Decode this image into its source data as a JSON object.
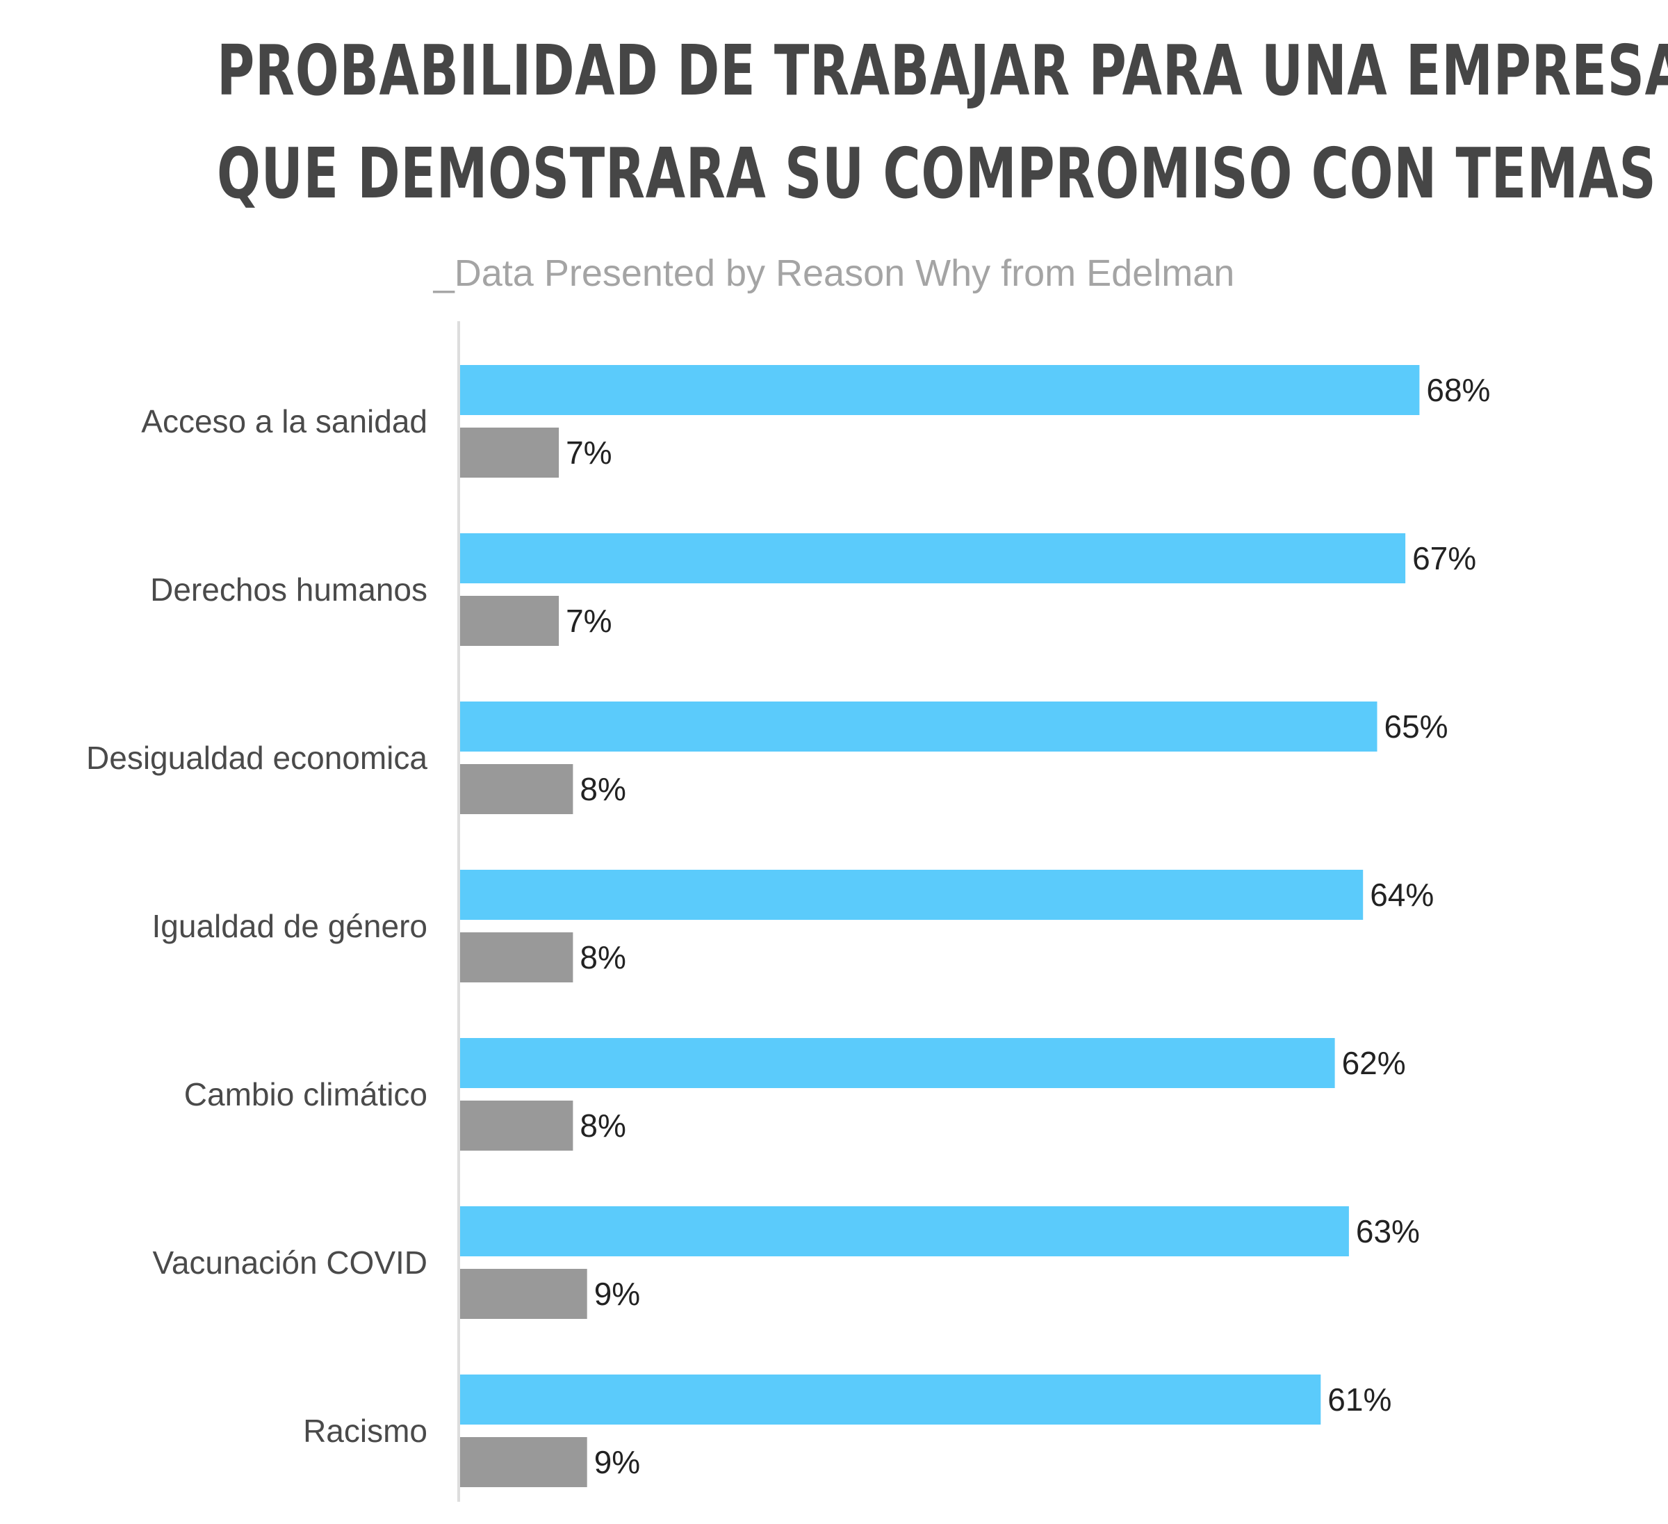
{
  "chart_data": {
    "type": "bar",
    "orientation": "horizontal",
    "title_lines": [
      "PROBABILIDAD DE TRABAJAR PARA UNA EMPRESA",
      "QUE DEMOSTRARA SU COMPROMISO CON TEMAS"
    ],
    "subtitle": "_Data Presented by Reason Why from Edelman",
    "categories": [
      "Acceso a la sanidad",
      "Derechos humanos",
      "Desigualdad economica",
      "Igualdad de género",
      "Cambio climático",
      "Vacunación COVID",
      "Racismo"
    ],
    "series": [
      {
        "color": "#5bcbfb",
        "values": [
          68,
          67,
          65,
          64,
          62,
          63,
          61
        ],
        "labels": [
          "68%",
          "67%",
          "65%",
          "64%",
          "62%",
          "63%",
          "61%"
        ]
      },
      {
        "color": "#999999",
        "values": [
          7,
          7,
          8,
          8,
          8,
          9,
          9
        ],
        "labels": [
          "7%",
          "7%",
          "8%",
          "8%",
          "8%",
          "9%",
          "9%"
        ]
      }
    ],
    "value_unit": "%",
    "xlim": [
      0,
      68
    ],
    "grid": false,
    "legend": "none",
    "axis_color": "#dddddd"
  }
}
